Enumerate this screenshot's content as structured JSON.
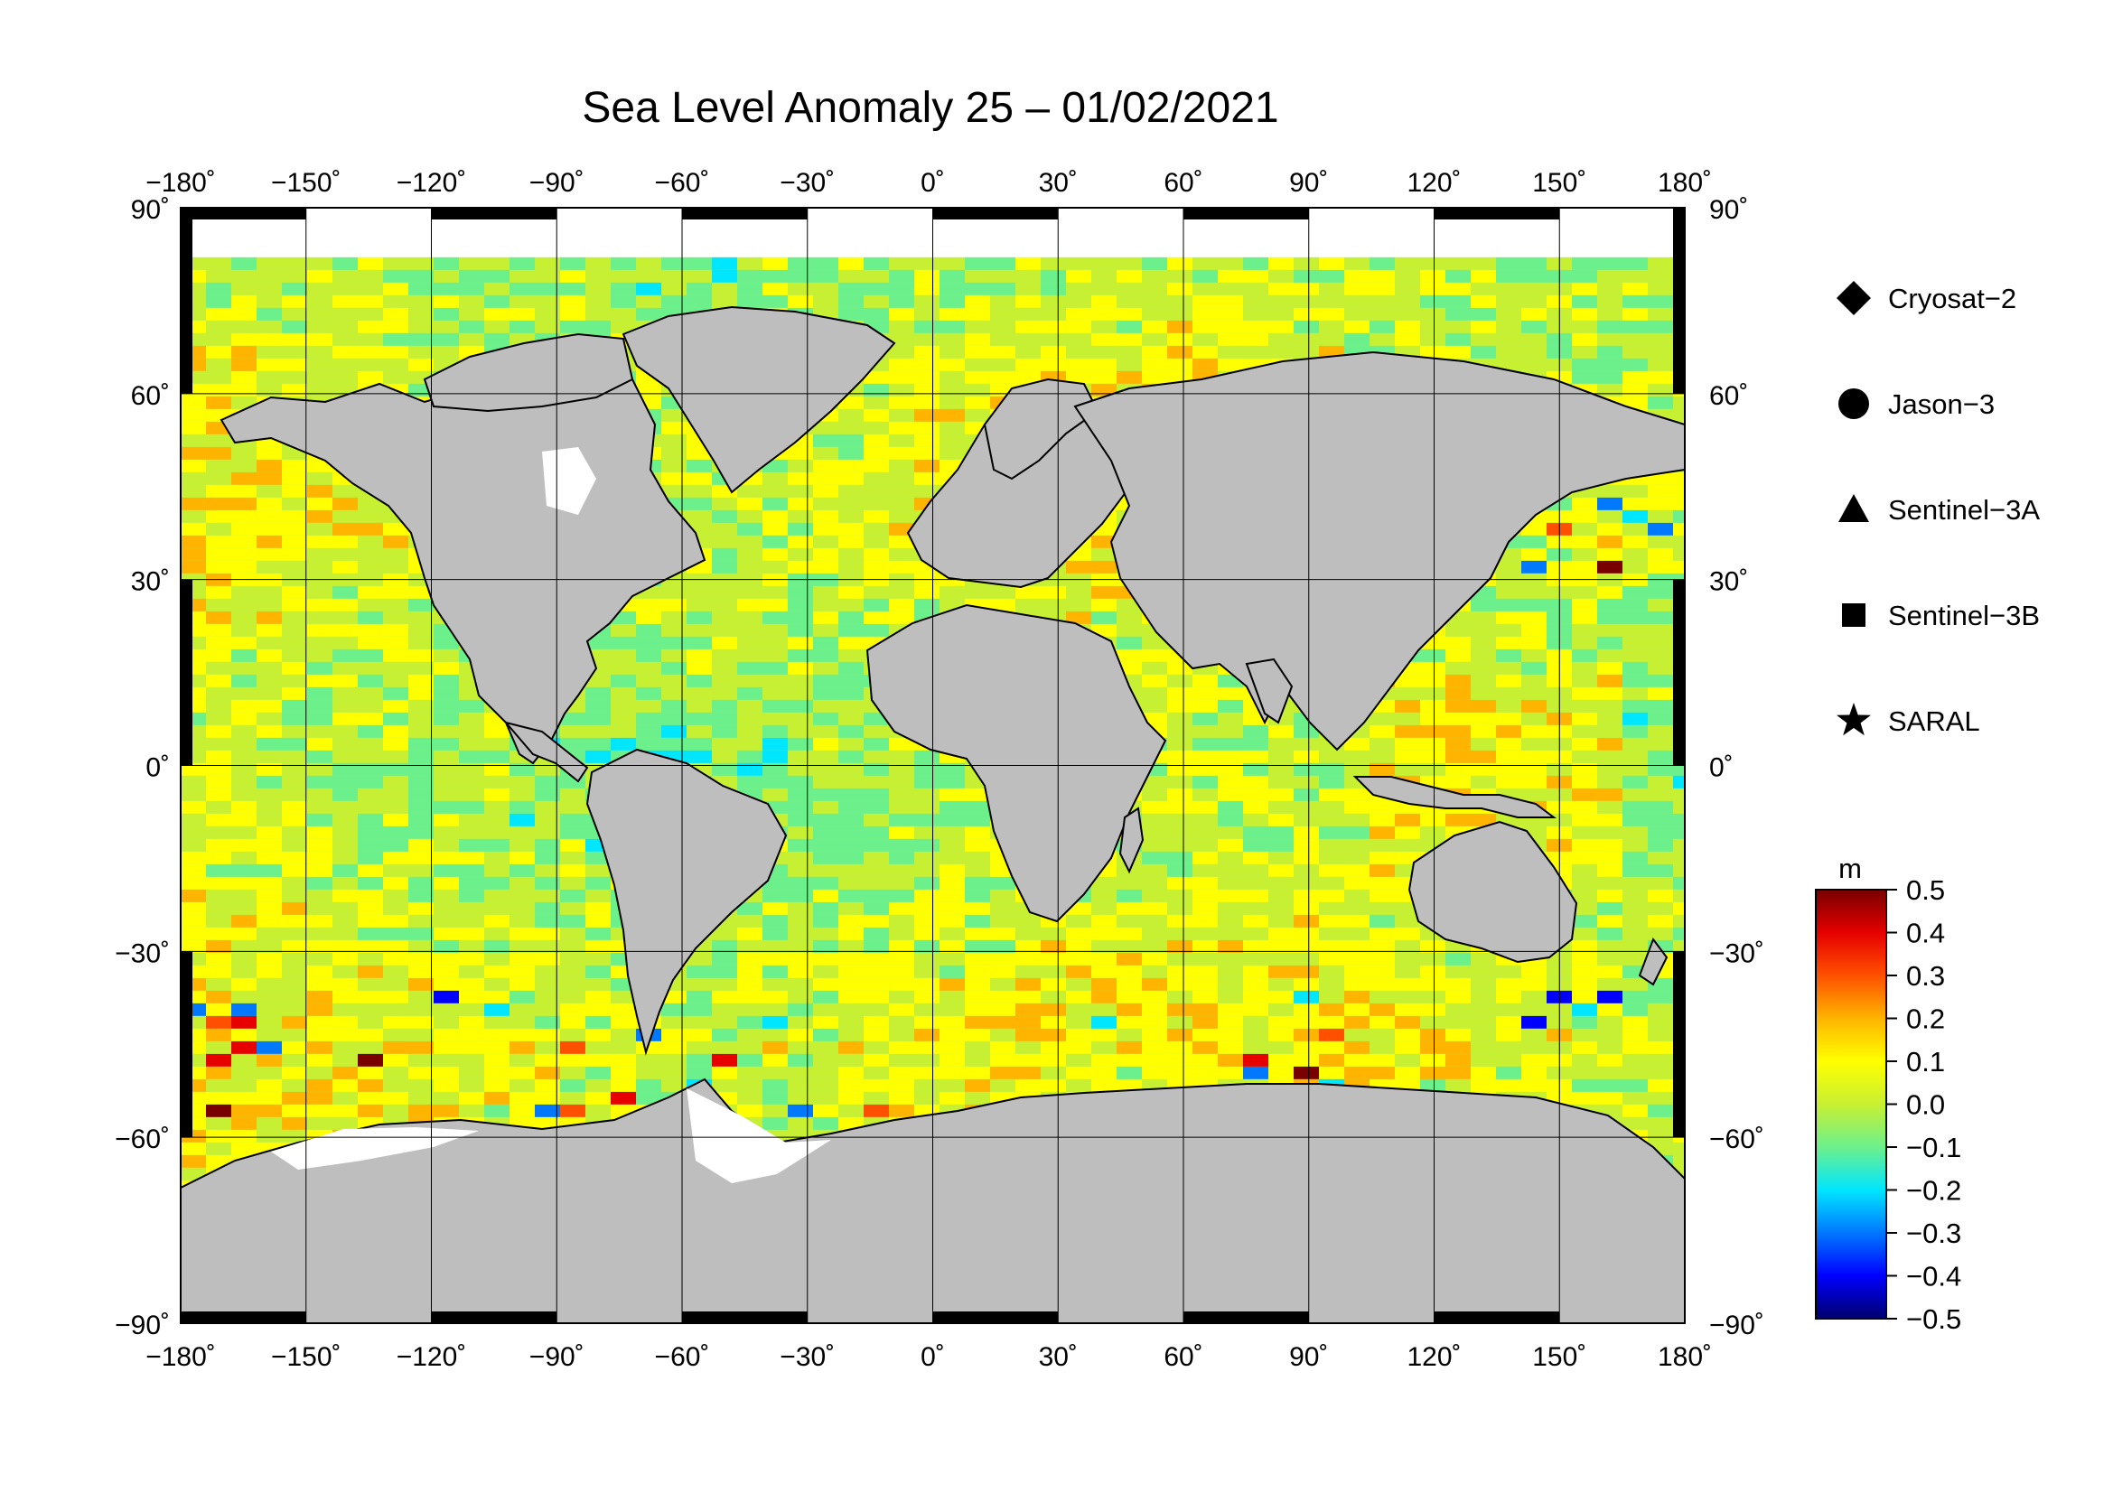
{
  "title": "Sea Level Anomaly 25 – 01/02/2021",
  "map": {
    "lon_ticks": [
      "−180",
      "−150",
      "−120",
      "−90",
      "−60",
      "−30",
      "0",
      "30",
      "60",
      "90",
      "120",
      "150",
      "180"
    ],
    "lat_ticks": [
      "90",
      "60",
      "30",
      "0",
      "−30",
      "−60",
      "−90"
    ],
    "degree_symbol": "˚",
    "land_color": "#bebebe",
    "ice_color": "#ffffff"
  },
  "legend": {
    "items": [
      {
        "shape": "diamond",
        "label": "Cryosat−2"
      },
      {
        "shape": "circle",
        "label": "Jason−3"
      },
      {
        "shape": "triangle",
        "label": "Sentinel−3A"
      },
      {
        "shape": "square",
        "label": "Sentinel−3B"
      },
      {
        "shape": "star",
        "label": "SARAL"
      }
    ]
  },
  "colorbar": {
    "unit": "m",
    "min": -0.5,
    "max": 0.5,
    "labels": [
      "0.5",
      "0.4",
      "0.3",
      "0.2",
      "0.1",
      "0.0",
      "−0.1",
      "−0.2",
      "−0.3",
      "−0.4",
      "−0.5"
    ],
    "colors": [
      "#00006e",
      "#0000ff",
      "#0078ff",
      "#00e6ff",
      "#6cf08c",
      "#c8f032",
      "#ffff00",
      "#ffb400",
      "#ff5000",
      "#e60000",
      "#780000"
    ]
  }
}
